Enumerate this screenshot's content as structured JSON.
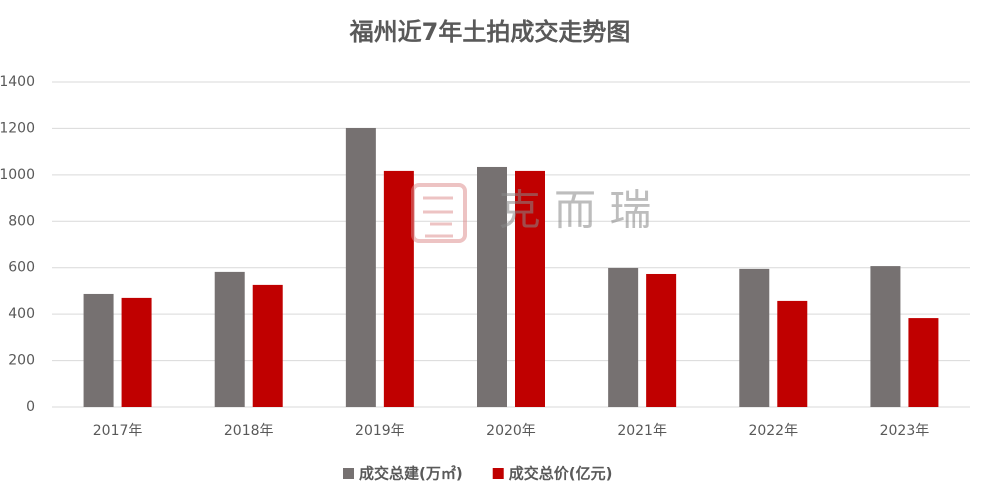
{
  "chart_data": {
    "type": "bar",
    "title": "福州近7年土拍成交走势图",
    "categories": [
      "2017年",
      "2018年",
      "2019年",
      "2020年",
      "2021年",
      "2022年",
      "2023年"
    ],
    "series": [
      {
        "name": "成交总建(万㎡)",
        "color": "#767171",
        "values": [
          487,
          582,
          1202,
          1034,
          599,
          595,
          607
        ]
      },
      {
        "name": "成交总价(亿元)",
        "color": "#c00000",
        "values": [
          470,
          526,
          1017,
          1017,
          573,
          457,
          383
        ]
      }
    ],
    "ylim": [
      0,
      1400
    ],
    "yticks": [
      0,
      200,
      400,
      600,
      800,
      1000,
      1200,
      1400
    ],
    "grid": true,
    "legend": "bottom",
    "watermark": "克 而 瑞"
  }
}
